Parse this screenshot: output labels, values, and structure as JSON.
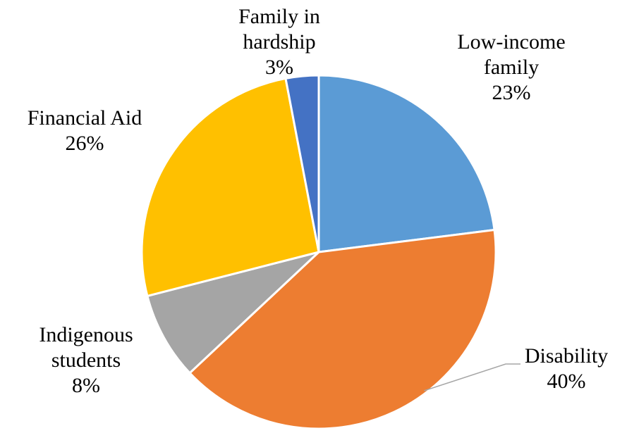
{
  "chart_data": {
    "type": "pie",
    "start_angle_deg": 0,
    "direction": "clockwise",
    "slices": [
      {
        "name_lines": [
          "Low-income",
          "family"
        ],
        "value": 23,
        "value_label": "23%",
        "color": "#5B9BD5"
      },
      {
        "name_lines": [
          "Disability"
        ],
        "value": 40,
        "value_label": "40%",
        "color": "#ED7D31"
      },
      {
        "name_lines": [
          "Indigenous",
          "students"
        ],
        "value": 8,
        "value_label": "8%",
        "color": "#A5A5A5"
      },
      {
        "name_lines": [
          "Financial Aid"
        ],
        "value": 26,
        "value_label": "26%",
        "color": "#FFC000"
      },
      {
        "name_lines": [
          "Family in",
          "hardship"
        ],
        "value": 3,
        "value_label": "3%",
        "color": "#4472C4"
      }
    ],
    "legend": "none"
  }
}
